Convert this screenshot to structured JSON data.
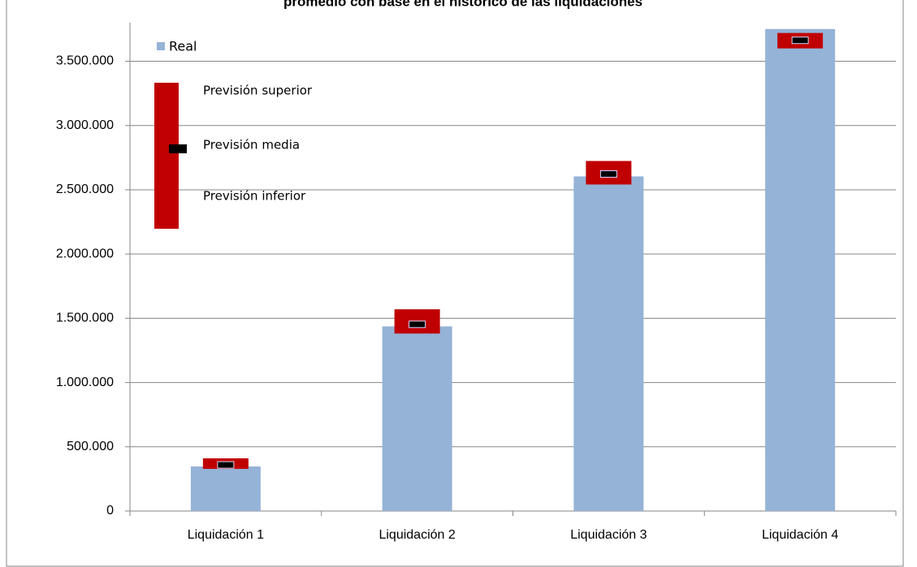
{
  "chart_data": {
    "type": "bar",
    "title": "promedio con base en el histórico de las liquidaciones",
    "categories": [
      "Liquidación 1",
      "Liquidación 2",
      "Liquidación 3",
      "Liquidación 4"
    ],
    "series": [
      {
        "name": "Real",
        "color": "#95b3d7",
        "values": [
          347000,
          1437000,
          2604000,
          3751000
        ]
      },
      {
        "name": "Previsión superior",
        "color": "#c00000",
        "values": [
          410000,
          1570000,
          2724000,
          3720000
        ]
      },
      {
        "name": "Previsión media",
        "color": "#000000",
        "values": [
          359000,
          1453000,
          2623000,
          3663000
        ]
      },
      {
        "name": "Previsión inferior",
        "color": "#c00000",
        "values": [
          328000,
          1381000,
          2541000,
          3600000
        ]
      }
    ],
    "ylim": [
      0,
      3800000
    ],
    "yticks": [
      0,
      {
        "value": 500000,
        "label": "500.000"
      },
      {
        "value": 1000000,
        "label": "1.000.000"
      },
      {
        "value": 1500000,
        "label": "1.500.000"
      },
      {
        "value": 2000000,
        "label": "2.000.000"
      },
      {
        "value": 2500000,
        "label": "2.500.000"
      },
      {
        "value": 3000000,
        "label": "3.000.000"
      },
      {
        "value": 3500000,
        "label": "3.500.000"
      }
    ],
    "grid": true
  }
}
